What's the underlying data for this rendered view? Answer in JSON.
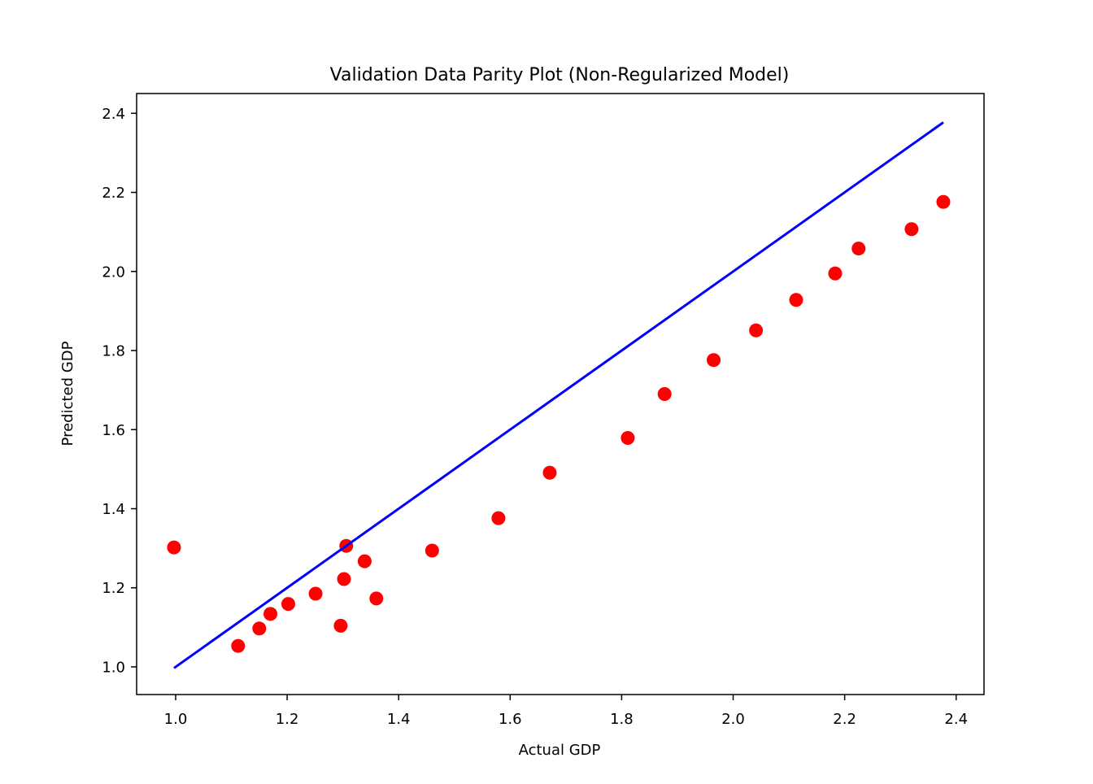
{
  "chart_data": {
    "type": "scatter",
    "title": "Validation Data Parity Plot (Non-Regularized Model)",
    "xlabel": "Actual GDP",
    "ylabel": "Predicted GDP",
    "xlim": [
      0.93,
      2.45
    ],
    "ylim": [
      0.93,
      2.45
    ],
    "x_ticks": [
      1.0,
      1.2,
      1.4,
      1.6,
      1.8,
      2.0,
      2.2,
      2.4
    ],
    "y_ticks": [
      1.0,
      1.2,
      1.4,
      1.6,
      1.8,
      2.0,
      2.2,
      2.4
    ],
    "x_tick_labels": [
      "1.0",
      "1.2",
      "1.4",
      "1.6",
      "1.8",
      "2.0",
      "2.2",
      "2.4"
    ],
    "y_tick_labels": [
      "1.0",
      "1.2",
      "1.4",
      "1.6",
      "1.8",
      "2.0",
      "2.2",
      "2.4"
    ],
    "grid": false,
    "series": [
      {
        "kind": "scatter",
        "color": "#ff0000",
        "x": [
          0.997,
          1.112,
          1.15,
          1.17,
          1.202,
          1.251,
          1.296,
          1.302,
          1.306,
          1.339,
          1.36,
          1.46,
          1.579,
          1.671,
          1.811,
          1.877,
          1.965,
          2.041,
          2.113,
          2.183,
          2.225,
          2.32,
          2.377
        ],
        "y": [
          1.302,
          1.053,
          1.097,
          1.134,
          1.159,
          1.185,
          1.104,
          1.222,
          1.306,
          1.267,
          1.173,
          1.294,
          1.376,
          1.491,
          1.579,
          1.69,
          1.776,
          1.851,
          1.928,
          1.995,
          2.058,
          2.107,
          2.176
        ]
      },
      {
        "kind": "line",
        "color": "#0000ff",
        "x": [
          0.997,
          2.377
        ],
        "y": [
          0.997,
          2.377
        ]
      }
    ]
  }
}
